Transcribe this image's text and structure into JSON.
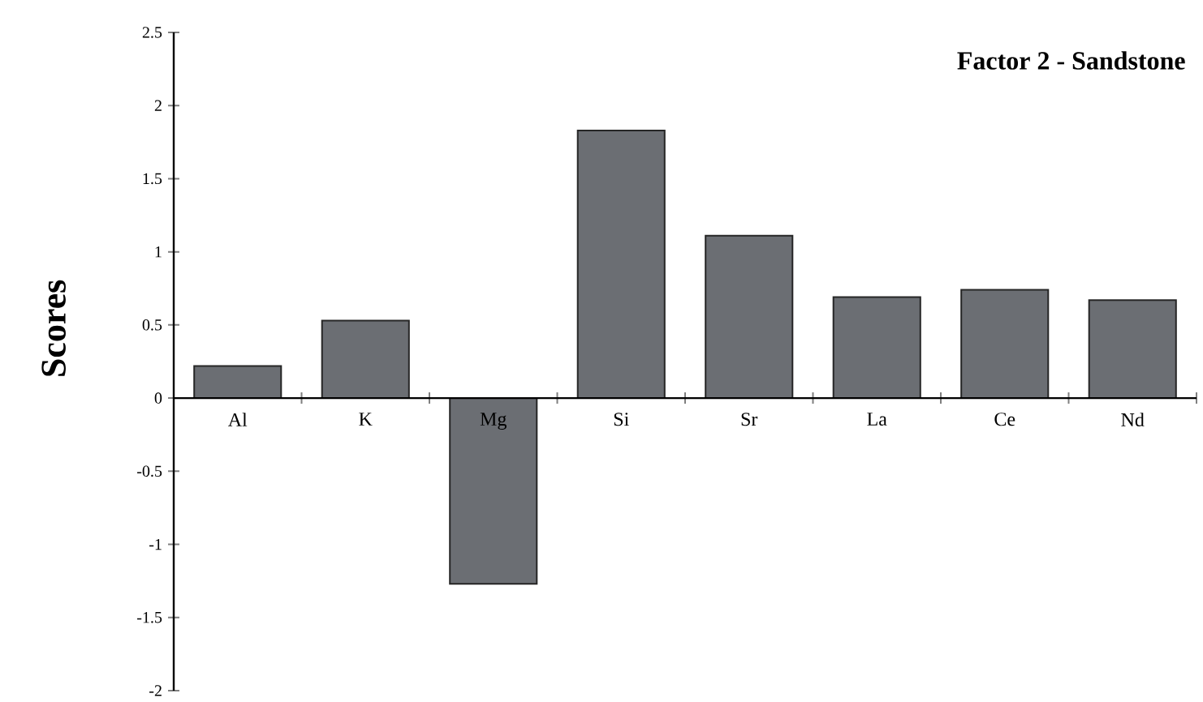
{
  "chart_data": {
    "type": "bar",
    "title": "Factor 2 - Sandstone",
    "ylabel": "Scores",
    "categories": [
      "Al",
      "K",
      "Mg",
      "Si",
      "Sr",
      "La",
      "Ce",
      "Nd"
    ],
    "values": [
      0.22,
      0.53,
      -1.27,
      1.83,
      1.11,
      0.69,
      0.74,
      0.67
    ],
    "color": "#6b6e73",
    "ylim": [
      -2,
      2.5
    ],
    "yticks": [
      -2,
      -1.5,
      -1,
      -0.5,
      0,
      0.5,
      1,
      1.5,
      2,
      2.5
    ],
    "grid": false
  }
}
